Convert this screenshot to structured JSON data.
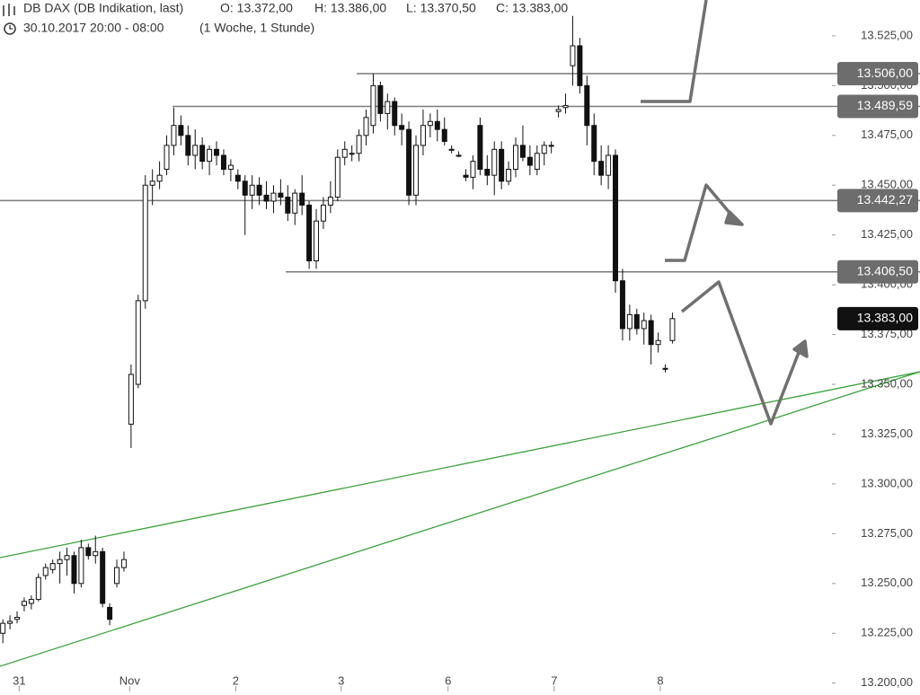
{
  "chart_data": {
    "type": "candlestick",
    "title": "DB DAX (DB Indikation, last)",
    "ohlc_header": [
      "O: 13.372,00",
      "H: 13.386,00",
      "L: 13.370,50",
      "C: 13.383,00"
    ],
    "subtitle": "30.10.2017 20:00 - 08:00",
    "interval": "(1 Woche, 1 Stunde)",
    "x": [
      0,
      1,
      2,
      3,
      4,
      5,
      6,
      7,
      8,
      9,
      10,
      11,
      12,
      13,
      14,
      15,
      16,
      17,
      18,
      19,
      20,
      21,
      22,
      23,
      24,
      25,
      26,
      27,
      28,
      29,
      30,
      31,
      32,
      33,
      34,
      35,
      36,
      37,
      38,
      39,
      40,
      41,
      42,
      43,
      44,
      45,
      46,
      47,
      48,
      49,
      50,
      51,
      52,
      53,
      54,
      55,
      56,
      57,
      58,
      59,
      60,
      61,
      62,
      63,
      64,
      65,
      66,
      67,
      68,
      69,
      70,
      71,
      72,
      73,
      74,
      75,
      76,
      77,
      78,
      79,
      80,
      81,
      82,
      83,
      84,
      85,
      86,
      87,
      88,
      89,
      90,
      91,
      92,
      93,
      94
    ],
    "open": [
      13225,
      13230,
      13232,
      13239,
      13240,
      13242,
      13254,
      13257,
      13260,
      13262,
      13264,
      13250,
      13268,
      13264,
      13266,
      13238,
      13250,
      13258,
      13330,
      13350,
      13392,
      13450,
      13452,
      13458,
      13470,
      13480,
      13475,
      13465,
      13470,
      13462,
      13468,
      13465,
      13458,
      13455,
      13452,
      13445,
      13450,
      13445,
      13442,
      13446,
      13444,
      13436,
      13446,
      13440,
      13412,
      13432,
      13440,
      13444,
      13464,
      13466,
      13466,
      13475,
      13480,
      13500,
      13486,
      13492,
      13480,
      13478,
      13445,
      13470,
      13480,
      13482,
      13478,
      13468,
      13465,
      13455,
      13454,
      13480,
      13458,
      13455,
      13468,
      13452,
      13458,
      13470,
      13464,
      13458,
      13466,
      13470,
      13487,
      13489,
      13510,
      13520,
      13500,
      13480,
      13462,
      13455,
      13465,
      13402,
      13378,
      13385,
      13378,
      13382,
      13370,
      13358,
      13372
    ],
    "high": [
      13232,
      13234,
      13236,
      13243,
      13244,
      13255,
      13260,
      13262,
      13266,
      13268,
      13266,
      13272,
      13270,
      13274,
      13268,
      13240,
      13262,
      13266,
      13360,
      13395,
      13455,
      13458,
      13462,
      13475,
      13489,
      13485,
      13480,
      13478,
      13474,
      13470,
      13472,
      13468,
      13463,
      13458,
      13455,
      13455,
      13454,
      13452,
      13450,
      13453,
      13450,
      13448,
      13455,
      13442,
      13438,
      13444,
      13452,
      13468,
      13472,
      13470,
      13478,
      13488,
      13506,
      13502,
      13496,
      13494,
      13486,
      13482,
      13475,
      13488,
      13486,
      13488,
      13484,
      13470,
      13467,
      13458,
      13465,
      13484,
      13465,
      13472,
      13472,
      13462,
      13474,
      13480,
      13470,
      13470,
      13472,
      13472,
      13490,
      13496,
      13535,
      13524,
      13505,
      13486,
      13470,
      13470,
      13468,
      13408,
      13390,
      13388,
      13386,
      13385,
      13376,
      13360,
      13386
    ],
    "low": [
      13220,
      13227,
      13230,
      13236,
      13237,
      13241,
      13252,
      13255,
      13250,
      13254,
      13245,
      13248,
      13262,
      13260,
      13238,
      13229,
      13248,
      13256,
      13318,
      13348,
      13388,
      13440,
      13448,
      13455,
      13465,
      13470,
      13460,
      13458,
      13458,
      13455,
      13460,
      13455,
      13452,
      13448,
      13425,
      13438,
      13440,
      13438,
      13436,
      13440,
      13432,
      13430,
      13435,
      13408,
      13408,
      13428,
      13436,
      13442,
      13460,
      13462,
      13462,
      13470,
      13476,
      13482,
      13478,
      13475,
      13470,
      13440,
      13440,
      13465,
      13474,
      13472,
      13470,
      13466,
      13464,
      13452,
      13448,
      13455,
      13450,
      13445,
      13448,
      13450,
      13454,
      13462,
      13455,
      13455,
      13460,
      13466,
      13484,
      13486,
      13500,
      13496,
      13470,
      13455,
      13450,
      13448,
      13396,
      13372,
      13372,
      13375,
      13370,
      13360,
      13366,
      13356,
      13370.5
    ],
    "close": [
      13230,
      13231,
      13233,
      13241,
      13242,
      13253,
      13258,
      13260,
      13262,
      13264,
      13250,
      13268,
      13264,
      13266,
      13240,
      13232,
      13258,
      13262,
      13355,
      13392,
      13450,
      13452,
      13455,
      13470,
      13480,
      13475,
      13465,
      13470,
      13462,
      13468,
      13465,
      13458,
      13460,
      13452,
      13445,
      13450,
      13445,
      13442,
      13446,
      13444,
      13436,
      13446,
      13440,
      13412,
      13432,
      13440,
      13444,
      13464,
      13468,
      13466,
      13475,
      13484,
      13500,
      13486,
      13492,
      13480,
      13478,
      13445,
      13470,
      13480,
      13482,
      13478,
      13472,
      13468,
      13465,
      13454,
      13462,
      13458,
      13455,
      13468,
      13452,
      13458,
      13470,
      13464,
      13460,
      13466,
      13470,
      13470,
      13488,
      13490,
      13520,
      13500,
      13480,
      13462,
      13455,
      13465,
      13402,
      13378,
      13385,
      13378,
      13382,
      13370,
      13372,
      13358,
      13383
    ],
    "xlim": [
      -0.4,
      116.9
    ],
    "xticks": [
      {
        "value": 2.3,
        "label": "31"
      },
      {
        "value": 17.8,
        "label": "Nov"
      },
      {
        "value": 32.7,
        "label": "2"
      },
      {
        "value": 47.5,
        "label": "3"
      },
      {
        "value": 62.5,
        "label": "6"
      },
      {
        "value": 77.4,
        "label": "7"
      },
      {
        "value": 92.3,
        "label": "8"
      }
    ],
    "ylim": [
      13194,
      13543
    ],
    "yticks": [
      {
        "value": 13525,
        "label": "13.525,00"
      },
      {
        "value": 13500,
        "label": "13.500,00"
      },
      {
        "value": 13475,
        "label": "13.475,00"
      },
      {
        "value": 13450,
        "label": "13.450,00"
      },
      {
        "value": 13425,
        "label": "13.425,00"
      },
      {
        "value": 13400,
        "label": "13.400,00"
      },
      {
        "value": 13375,
        "label": "13.375,00"
      },
      {
        "value": 13350,
        "label": "13.350,00"
      },
      {
        "value": 13325,
        "label": "13.325,00"
      },
      {
        "value": 13300,
        "label": "13.300,00"
      },
      {
        "value": 13275,
        "label": "13.275,00"
      },
      {
        "value": 13250,
        "label": "13.250,00"
      },
      {
        "value": 13225,
        "label": "13.225,00"
      },
      {
        "value": 13200,
        "label": "13.200,00"
      }
    ],
    "levels": [
      {
        "value": 13506,
        "label": "13.506,00"
      },
      {
        "value": 13489.59,
        "label": "13.489,59"
      },
      {
        "value": 13442.27,
        "label": "13.442,27"
      },
      {
        "value": 13406.5,
        "label": "13.406,50"
      }
    ],
    "last_price": {
      "value": 13383,
      "label": "13.383,00"
    },
    "level_color": "#7a7a7a",
    "trend_color": "#3aa33a"
  }
}
